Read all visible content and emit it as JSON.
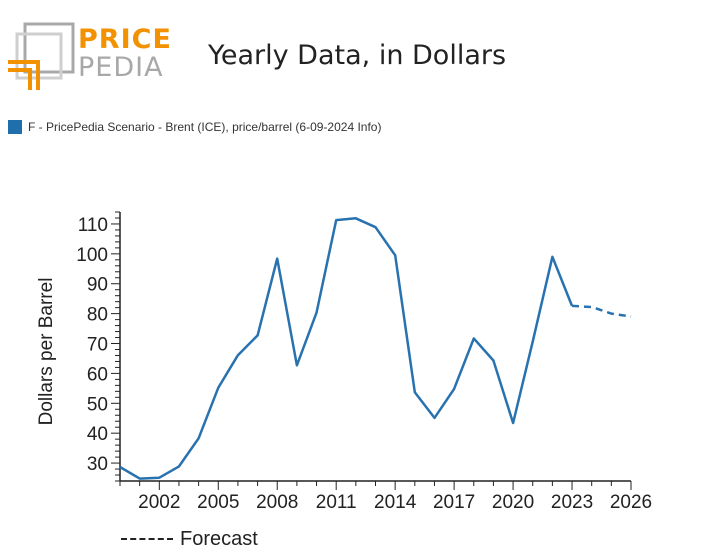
{
  "logo": {
    "word_top": "PRICE",
    "word_bottom": "PEDIA",
    "accent_color": "#f39200",
    "gray_color": "#a8a8a8"
  },
  "title": "Yearly Data, in Dollars",
  "legend": {
    "text": "F - PricePedia Scenario - Brent (ICE), price/barrel (6-09-2024 Info)",
    "color": "#1f6fad"
  },
  "forecast_label": "Forecast",
  "chart_data": {
    "type": "line",
    "ylabel": "Dollars per Barrel",
    "xlabel": "",
    "xlim": [
      2000,
      2026
    ],
    "ylim": [
      24,
      114
    ],
    "x_ticks": [
      2002,
      2005,
      2008,
      2011,
      2014,
      2017,
      2020,
      2023,
      2026
    ],
    "y_ticks": [
      30,
      40,
      50,
      60,
      70,
      80,
      90,
      100,
      110
    ],
    "series": [
      {
        "color": "#2872b0",
        "x": [
          2000,
          2001,
          2002,
          2003,
          2004,
          2005,
          2006,
          2007,
          2008,
          2009,
          2010,
          2011,
          2012,
          2013,
          2014,
          2015,
          2016,
          2017,
          2018,
          2019,
          2020,
          2021,
          2022,
          2023
        ],
        "y": [
          28.7,
          24.8,
          25.1,
          28.9,
          38.3,
          55.2,
          66.1,
          72.7,
          98.4,
          62.7,
          80.3,
          111.3,
          111.9,
          108.9,
          99.5,
          53.7,
          45.1,
          54.8,
          71.7,
          64.3,
          43.4,
          70.6,
          99.0,
          82.6
        ]
      },
      {
        "color": "#2872b0",
        "dashed": true,
        "x": [
          2023,
          2024,
          2025,
          2026
        ],
        "y": [
          82.6,
          82.2,
          80.0,
          79.0
        ]
      }
    ]
  }
}
